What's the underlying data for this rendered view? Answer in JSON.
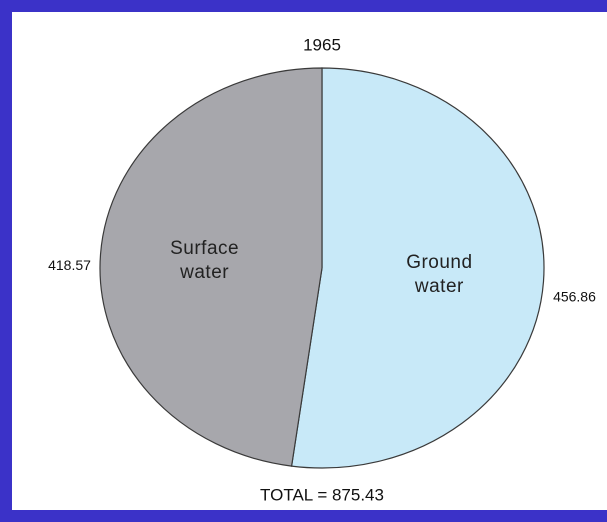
{
  "chart_data": {
    "type": "pie",
    "title": "1965",
    "categories": [
      "Ground water",
      "Surface water"
    ],
    "values": [
      456.86,
      418.57
    ],
    "colors": [
      "#c8e9f8",
      "#a7a7ac"
    ],
    "annotation": "TOTAL = 875.43"
  }
}
